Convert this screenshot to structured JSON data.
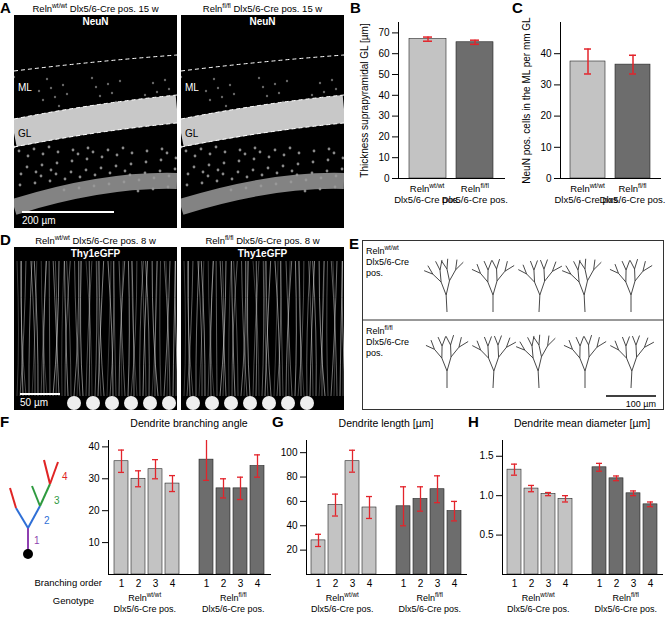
{
  "panels": {
    "A": {
      "panel": "A",
      "images": [
        {
          "header": "Relnwt/wt Dlx5/6-Cre pos. 15 w",
          "stain": "NeuN",
          "layers": [
            "ML",
            "GL"
          ]
        },
        {
          "header": "Relnfl/fl Dlx5/6-Cre pos. 15 w",
          "stain": "NeuN",
          "layers": [
            "ML",
            "GL"
          ]
        }
      ],
      "scale_bar": "200 µm"
    },
    "D": {
      "panel": "D",
      "images": [
        {
          "header": "Relnwt/wt Dlx5/6-Cre pos. 8 w",
          "stain": "Thy1eGFP"
        },
        {
          "header": "Relnfl/fl Dlx5/6-Cre pos. 8 w",
          "stain": "Thy1eGFP"
        }
      ],
      "scale_bar": "50 µm"
    },
    "E": {
      "panel": "E",
      "rows": [
        "Relnwt/wt Dlx5/6-Cre pos.",
        "Relnfl/fl Dlx5/6-Cre pos."
      ],
      "scale_bar": "100 µm"
    }
  },
  "chart_data": [
    {
      "panel": "B",
      "type": "bar",
      "y_label": "Thickness suprapyramidal GL [µm]",
      "categories": [
        "Relnwt/wt Dlx5/6-Cre pos.",
        "Relnfl/fl Dlx5/6-Cre pos."
      ],
      "values": [
        67,
        65.5
      ],
      "errors": [
        1,
        1
      ],
      "colors": [
        "#c3c3c3",
        "#6d6d6d"
      ],
      "ylim": [
        0,
        75
      ],
      "yticks": [
        0,
        10,
        20,
        30,
        40,
        50,
        60,
        70
      ]
    },
    {
      "panel": "C",
      "type": "bar",
      "y_label": "NeuN pos. cells in the ML per mm GL",
      "categories": [
        "Relnwt/wt Dlx5/6-Cre pos.",
        "Relnfl/fl Dlx5/6-Cre pos."
      ],
      "values": [
        37.5,
        36.5
      ],
      "errors": [
        4,
        3
      ],
      "colors": [
        "#c3c3c3",
        "#6d6d6d"
      ],
      "ylim": [
        0,
        50
      ],
      "yticks": [
        0,
        10,
        20,
        30,
        40
      ]
    },
    {
      "panel": "F",
      "type": "bar",
      "title": "Dendrite branching angle",
      "x_label": "Branching order",
      "group_label": "Genotype",
      "branch_diagram": {
        "labels": [
          "1",
          "2",
          "3",
          "4"
        ],
        "colors": [
          "#8e3fb0",
          "#2f6fd6",
          "#2e9a3f",
          "#e02424"
        ]
      },
      "categories": [
        "1",
        "2",
        "3",
        "4"
      ],
      "series": [
        {
          "name": "Relnwt/wt Dlx5/6-Cre pos.",
          "color": "#c3c3c3",
          "values": [
            35.5,
            30,
            33,
            28.5
          ],
          "errors": [
            3.5,
            2.5,
            3,
            2.5
          ]
        },
        {
          "name": "Relnfl/fl Dlx5/6-Cre pos.",
          "color": "#6d6d6d",
          "values": [
            36,
            27,
            27,
            34
          ],
          "errors": [
            6.5,
            3,
            3.5,
            3.5
          ]
        }
      ],
      "ylim": [
        0,
        42
      ],
      "yticks": [
        10,
        20,
        30,
        40
      ]
    },
    {
      "panel": "G",
      "type": "bar",
      "title": "Dendrite length [µm]",
      "categories": [
        "1",
        "2",
        "3",
        "4"
      ],
      "series": [
        {
          "name": "Relnwt/wt Dlx5/6-Cre pos.",
          "color": "#c3c3c3",
          "values": [
            28,
            57,
            93,
            55
          ],
          "errors": [
            5,
            9,
            9,
            9
          ]
        },
        {
          "name": "Relnfl/fl Dlx5/6-Cre pos.",
          "color": "#6d6d6d",
          "values": [
            56,
            62,
            70,
            52
          ],
          "errors": [
            16,
            10,
            11,
            8
          ]
        }
      ],
      "ylim": [
        0,
        110
      ],
      "yticks": [
        20,
        40,
        60,
        80,
        100
      ]
    },
    {
      "panel": "H",
      "type": "bar",
      "title": "Dendrite mean diameter [µm]",
      "categories": [
        "1",
        "2",
        "3",
        "4"
      ],
      "series": [
        {
          "name": "Relnwt/wt Dlx5/6-Cre pos.",
          "color": "#c3c3c3",
          "values": [
            1.33,
            1.09,
            1.02,
            0.96
          ],
          "errors": [
            0.07,
            0.04,
            0.02,
            0.04
          ]
        },
        {
          "name": "Relnfl/fl Dlx5/6-Cre pos.",
          "color": "#6d6d6d",
          "values": [
            1.36,
            1.22,
            1.03,
            0.89
          ],
          "errors": [
            0.05,
            0.03,
            0.03,
            0.03
          ]
        }
      ],
      "ylim": [
        0,
        1.7
      ],
      "yticks": [
        0.5,
        {
          "value": 1,
          "label": "1.0"
        },
        1.5
      ]
    }
  ]
}
